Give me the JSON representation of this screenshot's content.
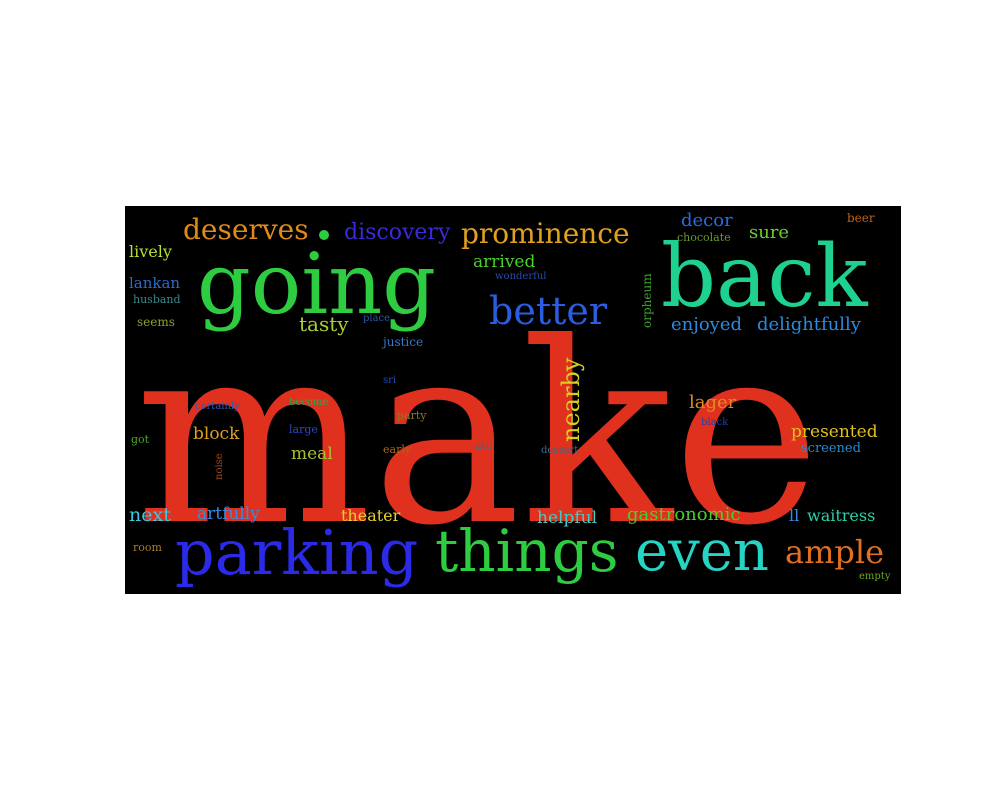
{
  "word_cloud": {
    "background": "#000000",
    "words": [
      {
        "text": "make",
        "color": "#e0301e"
      },
      {
        "text": "going",
        "color": "#2ecc40"
      },
      {
        "text": "back",
        "color": "#1fd18f"
      },
      {
        "text": "parking",
        "color": "#2a2ae8"
      },
      {
        "text": "things",
        "color": "#2ecc40"
      },
      {
        "text": "even",
        "color": "#26d4c4"
      },
      {
        "text": "better",
        "color": "#2a5ee0"
      },
      {
        "text": "prominence",
        "color": "#e0a020"
      },
      {
        "text": "deserves",
        "color": "#e08a1a"
      },
      {
        "text": "discovery",
        "color": "#3a2ad8"
      },
      {
        "text": "ample",
        "color": "#e07020"
      },
      {
        "text": "nearby",
        "color": "#d4d020"
      },
      {
        "text": "tasty",
        "color": "#a8d030"
      },
      {
        "text": "enjoyed",
        "color": "#2a8ae0"
      },
      {
        "text": "delightfully",
        "color": "#2a8ae0"
      },
      {
        "text": "decor",
        "color": "#2a6ae0"
      },
      {
        "text": "sure",
        "color": "#6ad030"
      },
      {
        "text": "beer",
        "color": "#c86010"
      },
      {
        "text": "chocolate",
        "color": "#6a9a2a"
      },
      {
        "text": "lively",
        "color": "#b8e030"
      },
      {
        "text": "lankan",
        "color": "#2a6ac8"
      },
      {
        "text": "husband",
        "color": "#3a8a8a"
      },
      {
        "text": "seems",
        "color": "#8aa030"
      },
      {
        "text": "arrived",
        "color": "#4ad02a"
      },
      {
        "text": "wonderful",
        "color": "#2a4aa8"
      },
      {
        "text": "place",
        "color": "#2a5aa8"
      },
      {
        "text": "justice",
        "color": "#3a7ac8"
      },
      {
        "text": "orpheum",
        "color": "#3aa82a"
      },
      {
        "text": "sri",
        "color": "#2a4aa8"
      },
      {
        "text": "certainly",
        "color": "#2a5ab8"
      },
      {
        "text": "become",
        "color": "#2aa84a"
      },
      {
        "text": "party",
        "color": "#8a7a2a"
      },
      {
        "text": "large",
        "color": "#2a4ac8"
      },
      {
        "text": "got",
        "color": "#4aa82a"
      },
      {
        "text": "block",
        "color": "#e0a020"
      },
      {
        "text": "noise",
        "color": "#a84a1a"
      },
      {
        "text": "meal",
        "color": "#a8c030"
      },
      {
        "text": "early",
        "color": "#a86a1a"
      },
      {
        "text": "ate",
        "color": "#3a6a8a"
      },
      {
        "text": "dessert",
        "color": "#3a6a8a"
      },
      {
        "text": "lager",
        "color": "#e08a20"
      },
      {
        "text": "black",
        "color": "#2a3aa8"
      },
      {
        "text": "presented",
        "color": "#e0c020"
      },
      {
        "text": "screened",
        "color": "#2a8ac8"
      },
      {
        "text": "next",
        "color": "#3ac8e0"
      },
      {
        "text": "artfully",
        "color": "#3a8ae0"
      },
      {
        "text": "theater",
        "color": "#e0d030"
      },
      {
        "text": "helpful",
        "color": "#3ad0c8"
      },
      {
        "text": "gastronomic",
        "color": "#4ad02a"
      },
      {
        "text": "ll",
        "color": "#3a8ae0"
      },
      {
        "text": "waitress",
        "color": "#2ad0a8"
      },
      {
        "text": "room",
        "color": "#a87a2a"
      },
      {
        "text": "empty",
        "color": "#6aa82a"
      }
    ]
  }
}
